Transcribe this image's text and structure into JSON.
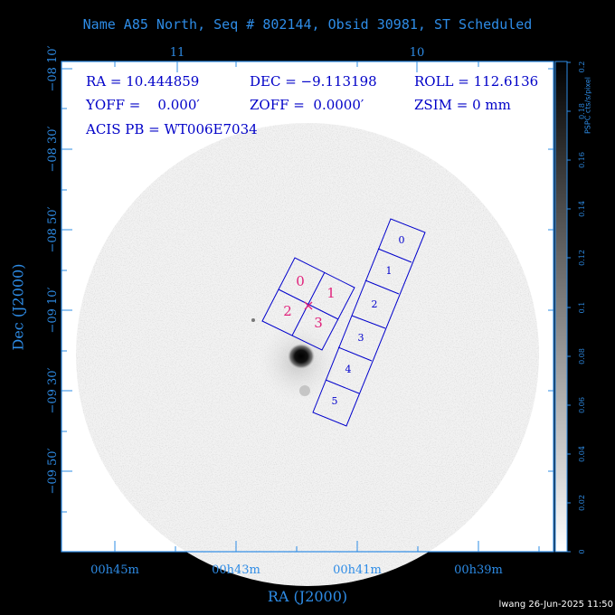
{
  "title": "Name A85 North, Seq # 802144, Obsid 30981, ST Scheduled",
  "info": {
    "ra": "RA = 10.444859",
    "dec": "DEC = −9.113198",
    "roll": "ROLL = 112.6136",
    "yoff": "YOFF =    0.000′",
    "zoff": "ZOFF =  0.0000′",
    "zsim": "ZSIM = 0 mm",
    "acis_pb": "ACIS PB = WT006E7034"
  },
  "axes": {
    "xlabel": "RA (J2000)",
    "ylabel": "Dec (J2000)",
    "x_ticks": [
      "00h45m",
      "00h43m",
      "00h41m",
      "00h39m"
    ],
    "top_ticks": [
      "11",
      "10"
    ],
    "y_ticks": [
      "−08 10′",
      "−08 30′",
      "−08 50′",
      "−09 10′",
      "−09 30′",
      "−09 50′"
    ]
  },
  "colorbar": {
    "title": "PSPC cts/s/pixel",
    "ticks": [
      "0",
      "0.02",
      "0.04",
      "0.06",
      "0.08",
      "0.1",
      "0.12",
      "0.14",
      "0.16",
      "0.18",
      "0.2"
    ]
  },
  "ccds": {
    "acis_i": [
      "0",
      "1",
      "2",
      "3"
    ],
    "acis_s": [
      "0",
      "1",
      "2",
      "3",
      "4",
      "5"
    ]
  },
  "footer": "lwang 26-Jun-2025 11:50",
  "colors": {
    "axis": "#2e8ce6",
    "info": "#0000c8",
    "ccd_outline": "#0000cc",
    "acis_i_labels": "#e0207a",
    "aimpoint": "#e0207a"
  }
}
